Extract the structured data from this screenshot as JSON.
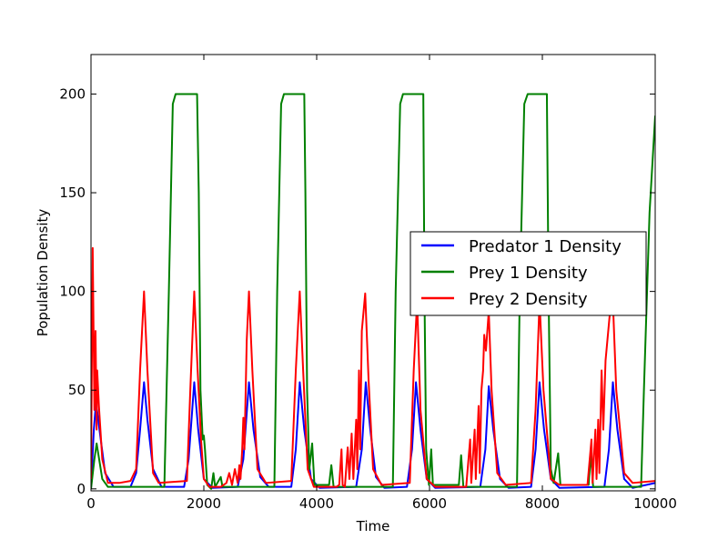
{
  "chart_data": {
    "type": "line",
    "xlabel": "Time",
    "ylabel": "Population Density",
    "xlim": [
      0,
      10000
    ],
    "ylim": [
      -1,
      220
    ],
    "xticks": [
      0,
      2000,
      4000,
      6000,
      8000,
      10000
    ],
    "yticks": [
      0,
      50,
      100,
      150,
      200
    ],
    "legend": "center right",
    "series": [
      {
        "name": "Predator 1 Density",
        "color": "#0000ff",
        "x": [
          0,
          50,
          90,
          150,
          250,
          400,
          700,
          800,
          870,
          940,
          1000,
          1100,
          1250,
          1650,
          1730,
          1830,
          1900,
          2000,
          2150,
          2600,
          2700,
          2800,
          2880,
          3000,
          3150,
          3550,
          3630,
          3700,
          3780,
          3900,
          4050,
          4700,
          4800,
          4870,
          4950,
          5050,
          5200,
          5600,
          5690,
          5760,
          5840,
          5950,
          6100,
          6900,
          6990,
          7050,
          7130,
          7250,
          7400,
          7800,
          7880,
          7950,
          8030,
          8150,
          8300,
          9100,
          9180,
          9250,
          9330,
          9450,
          9600,
          10000
        ],
        "values": [
          0,
          30,
          44,
          30,
          8,
          1,
          1,
          8,
          30,
          54,
          35,
          10,
          1,
          1,
          15,
          54,
          30,
          5,
          0.5,
          1,
          15,
          54,
          30,
          6,
          1,
          1,
          20,
          54,
          30,
          5,
          0.5,
          1,
          20,
          54,
          30,
          6,
          0.5,
          1,
          20,
          54,
          30,
          5,
          0.5,
          1,
          20,
          52,
          30,
          5,
          0.5,
          1,
          20,
          54,
          30,
          5,
          0.5,
          1,
          20,
          54,
          30,
          5,
          0.5,
          3
        ]
      },
      {
        "name": "Prey 1 Density",
        "color": "#008000",
        "x": [
          0,
          60,
          100,
          200,
          300,
          1300,
          1380,
          1450,
          1500,
          1880,
          1910,
          1940,
          1980,
          2000,
          2020,
          2060,
          2130,
          2170,
          2200,
          2300,
          2330,
          3250,
          3300,
          3370,
          3420,
          3780,
          3800,
          3830,
          3870,
          3920,
          3960,
          4220,
          4260,
          4300,
          5350,
          5400,
          5480,
          5530,
          5890,
          5910,
          5940,
          5990,
          6030,
          6060,
          6520,
          6560,
          6600,
          7550,
          7600,
          7680,
          7740,
          8080,
          8110,
          8150,
          8200,
          8280,
          8320,
          8820,
          8860,
          8900,
          9750,
          9800,
          9900,
          10000
        ],
        "values": [
          0,
          15,
          23,
          5,
          1,
          1,
          100,
          195,
          200,
          200,
          150,
          50,
          25,
          27,
          20,
          2,
          0,
          8,
          1,
          6,
          1,
          1,
          100,
          195,
          200,
          200,
          150,
          50,
          10,
          23,
          2,
          2,
          12,
          1,
          1,
          100,
          195,
          200,
          200,
          100,
          20,
          2,
          20,
          2,
          2,
          17,
          1,
          1,
          100,
          195,
          200,
          200,
          100,
          10,
          3,
          18,
          2,
          2,
          18,
          1,
          1,
          50,
          140,
          189
        ]
      },
      {
        "name": "Prey 2 Density",
        "color": "#ff0000",
        "x": [
          0,
          30,
          60,
          80,
          100,
          110,
          140,
          200,
          300,
          500,
          700,
          800,
          870,
          940,
          1000,
          1100,
          1200,
          1700,
          1760,
          1830,
          1890,
          1950,
          2000,
          2100,
          2300,
          2400,
          2450,
          2500,
          2550,
          2600,
          2630,
          2650,
          2680,
          2700,
          2720,
          2760,
          2800,
          2860,
          2950,
          3100,
          3550,
          3630,
          3700,
          3760,
          3840,
          3950,
          4350,
          4400,
          4440,
          4460,
          4500,
          4550,
          4580,
          4620,
          4650,
          4700,
          4720,
          4750,
          4770,
          4800,
          4860,
          4920,
          5000,
          5150,
          5650,
          5720,
          5780,
          5840,
          5950,
          6100,
          6650,
          6720,
          6740,
          6800,
          6820,
          6870,
          6890,
          6920,
          6950,
          6970,
          7000,
          7050,
          7100,
          7200,
          7350,
          7800,
          7880,
          7950,
          8020,
          8150,
          8300,
          8800,
          8870,
          8890,
          8940,
          8960,
          8990,
          9010,
          9050,
          9080,
          9120,
          9200,
          9250,
          9310,
          9450,
          9600,
          10000
        ],
        "values": [
          5,
          122,
          40,
          80,
          30,
          60,
          42,
          15,
          3,
          3,
          4,
          10,
          60,
          100,
          60,
          8,
          3,
          4,
          50,
          100,
          60,
          25,
          5,
          1,
          1,
          3,
          8,
          2,
          10,
          3,
          12,
          5,
          20,
          36,
          20,
          75,
          100,
          60,
          10,
          3,
          4,
          60,
          100,
          60,
          10,
          1,
          1,
          2,
          20,
          2,
          1,
          21,
          5,
          28,
          5,
          35,
          10,
          60,
          20,
          80,
          99,
          55,
          10,
          2,
          3,
          60,
          95,
          40,
          5,
          1,
          1,
          25,
          3,
          30,
          5,
          42,
          8,
          50,
          60,
          78,
          70,
          90,
          50,
          8,
          2,
          3,
          40,
          95,
          50,
          5,
          2,
          2,
          25,
          3,
          30,
          5,
          35,
          8,
          60,
          30,
          65,
          90,
          95,
          50,
          8,
          3,
          4
        ]
      }
    ]
  }
}
